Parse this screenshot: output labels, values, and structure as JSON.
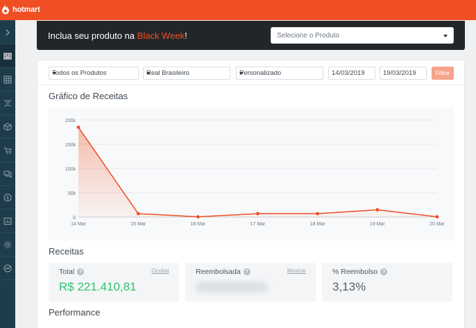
{
  "app": {
    "logo_text": "hotmart",
    "brand_color": "#f04e23"
  },
  "sidebar": {
    "items": [
      {
        "icon": "chevron-right-icon"
      },
      {
        "icon": "dashboard-icon",
        "active": true
      },
      {
        "icon": "grid-icon"
      },
      {
        "icon": "affiliate-icon"
      },
      {
        "icon": "box-icon"
      },
      {
        "icon": "cart-icon"
      },
      {
        "icon": "chat-icon"
      },
      {
        "icon": "dollar-icon"
      },
      {
        "icon": "report-icon"
      },
      {
        "icon": "gear-icon"
      },
      {
        "icon": "analytics-icon"
      }
    ]
  },
  "banner": {
    "text_prefix": "Inclua seu produto na ",
    "highlight": "Black Week",
    "text_suffix": "!",
    "select_placeholder": "Selecione o Produto"
  },
  "filters": {
    "products": "Todos os Produtos",
    "currency": "Real Brasileiro",
    "period": "Personalizado",
    "date_start": "14/03/2019",
    "date_end": "19/03/2019",
    "filter_button": "Filtrar"
  },
  "chart_section": {
    "title": "Gráfico de Receitas"
  },
  "chart_data": {
    "type": "area",
    "x": [
      "14 Mar",
      "15 Mar",
      "16 Mar",
      "17 Mar",
      "18 Mar",
      "19 Mar",
      "20 Mar"
    ],
    "values": [
      185000,
      7000,
      500,
      7000,
      7000,
      15000,
      500
    ],
    "y_ticks": [
      "0",
      "50k",
      "100k",
      "150k",
      "200k"
    ],
    "ylim": [
      0,
      200000
    ],
    "line_color": "#f04e23",
    "grid": true
  },
  "revenue": {
    "title": "Receitas",
    "total_label": "Total",
    "total_link": "Ocultar",
    "total_value": "R$ 221.410,81",
    "refund_label": "Reembolsada",
    "refund_link": "Mostrar",
    "refund_pct_label": "% Reembolso",
    "refund_pct_value": "3,13%"
  },
  "performance": {
    "title": "Performance"
  }
}
